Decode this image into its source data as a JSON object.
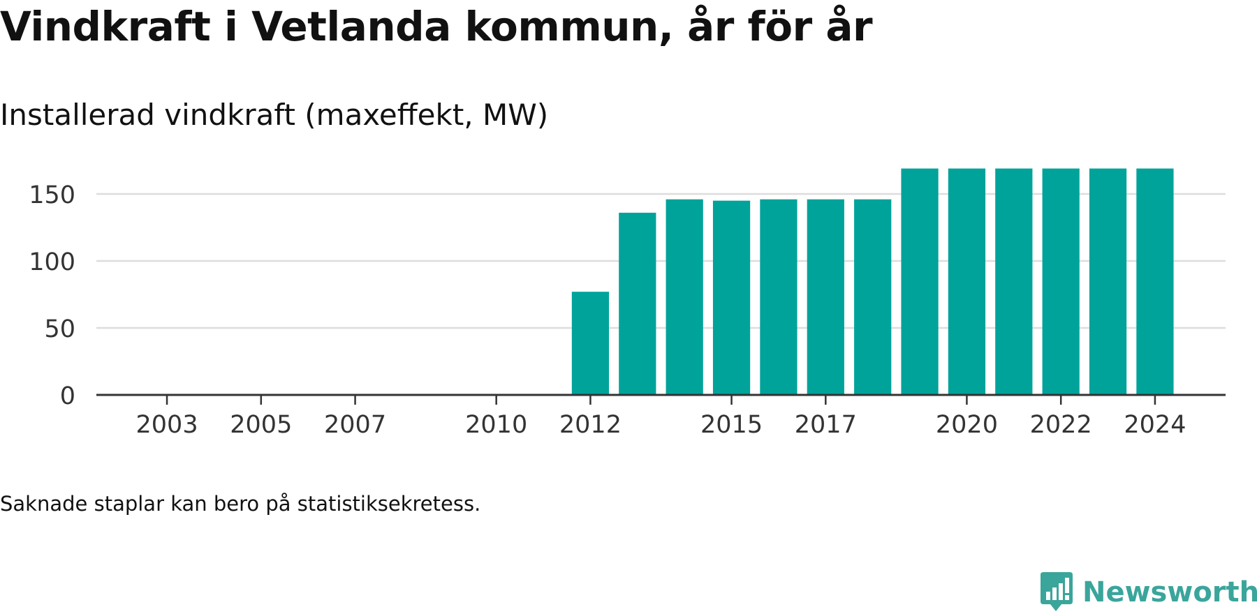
{
  "title": "Vindkraft i Vetlanda kommun, år för år",
  "subtitle": "Installerad vindkraft (maxeffekt, MW)",
  "footnote": "Saknade staplar kan bero på statistiksekretess.",
  "logo": {
    "text": "Newsworthy",
    "icon": "newsworthy-chart-bubble-icon",
    "color": "#3aa59b"
  },
  "chart_data": {
    "type": "bar",
    "categories": [
      "2012",
      "2013",
      "2014",
      "2015",
      "2016",
      "2017",
      "2018",
      "2019",
      "2020",
      "2021",
      "2022",
      "2023",
      "2024"
    ],
    "values": [
      77,
      136,
      146,
      145,
      146,
      146,
      146,
      169,
      169,
      169,
      169,
      169,
      169
    ],
    "xlabel": "",
    "ylabel": "",
    "ylim": [
      0,
      175
    ],
    "xlim": [
      2001.5,
      2025.5
    ],
    "yticks": [
      0,
      50,
      100,
      150
    ],
    "xticks": [
      "2003",
      "2005",
      "2007",
      "2010",
      "2012",
      "2015",
      "2017",
      "2020",
      "2022",
      "2024"
    ],
    "grid": true,
    "bar_color": "#00a39a",
    "grid_color": "#dddddd",
    "axis_color": "#333333"
  }
}
